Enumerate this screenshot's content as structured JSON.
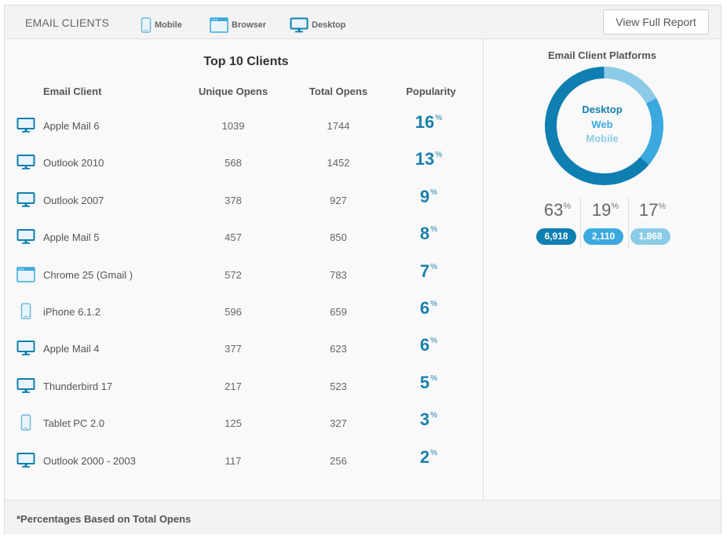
{
  "header": {
    "title": "EMAIL CLIENTS",
    "legend": [
      {
        "label": "Mobile",
        "icon": "mobile-icon"
      },
      {
        "label": "Browser",
        "icon": "browser-icon"
      },
      {
        "label": "Desktop",
        "icon": "desktop-icon"
      }
    ],
    "report_button": "View Full Report"
  },
  "table": {
    "title": "Top 10 Clients",
    "columns": [
      "Email Client",
      "Unique Opens",
      "Total Opens",
      "Popularity"
    ],
    "pct_symbol": "%",
    "rows": [
      {
        "type": "desktop",
        "name": "Apple Mail 6",
        "unique": "1039",
        "total": "1744",
        "popularity": "16"
      },
      {
        "type": "desktop",
        "name": "Outlook 2010",
        "unique": "568",
        "total": "1452",
        "popularity": "13"
      },
      {
        "type": "desktop",
        "name": "Outlook 2007",
        "unique": "378",
        "total": "927",
        "popularity": "9"
      },
      {
        "type": "desktop",
        "name": "Apple Mail 5",
        "unique": "457",
        "total": "850",
        "popularity": "8"
      },
      {
        "type": "browser",
        "name": "Chrome 25 (Gmail )",
        "unique": "572",
        "total": "783",
        "popularity": "7"
      },
      {
        "type": "mobile",
        "name": "iPhone 6.1.2",
        "unique": "596",
        "total": "659",
        "popularity": "6"
      },
      {
        "type": "desktop",
        "name": "Apple Mail 4",
        "unique": "377",
        "total": "623",
        "popularity": "6"
      },
      {
        "type": "desktop",
        "name": "Thunderbird 17",
        "unique": "217",
        "total": "523",
        "popularity": "5"
      },
      {
        "type": "mobile",
        "name": "Tablet PC 2.0",
        "unique": "125",
        "total": "327",
        "popularity": "3"
      },
      {
        "type": "desktop",
        "name": "Outlook 2000 - 2003",
        "unique": "117",
        "total": "256",
        "popularity": "2"
      }
    ]
  },
  "platforms": {
    "title": "Email Client Platforms",
    "pct_symbol": "%",
    "segments": [
      {
        "label": "Desktop",
        "percent": "63",
        "count": "6,918",
        "color": "#0f7fb1"
      },
      {
        "label": "Web",
        "percent": "19",
        "count": "2,110",
        "color": "#3ba9df"
      },
      {
        "label": "Mobile",
        "percent": "17",
        "count": "1,868",
        "color": "#8ccbe8"
      }
    ]
  },
  "footer": {
    "note": "*Percentages Based on Total Opens"
  },
  "icon_color": "#0f7fb1",
  "icon_light_color": "#6fb7de"
}
